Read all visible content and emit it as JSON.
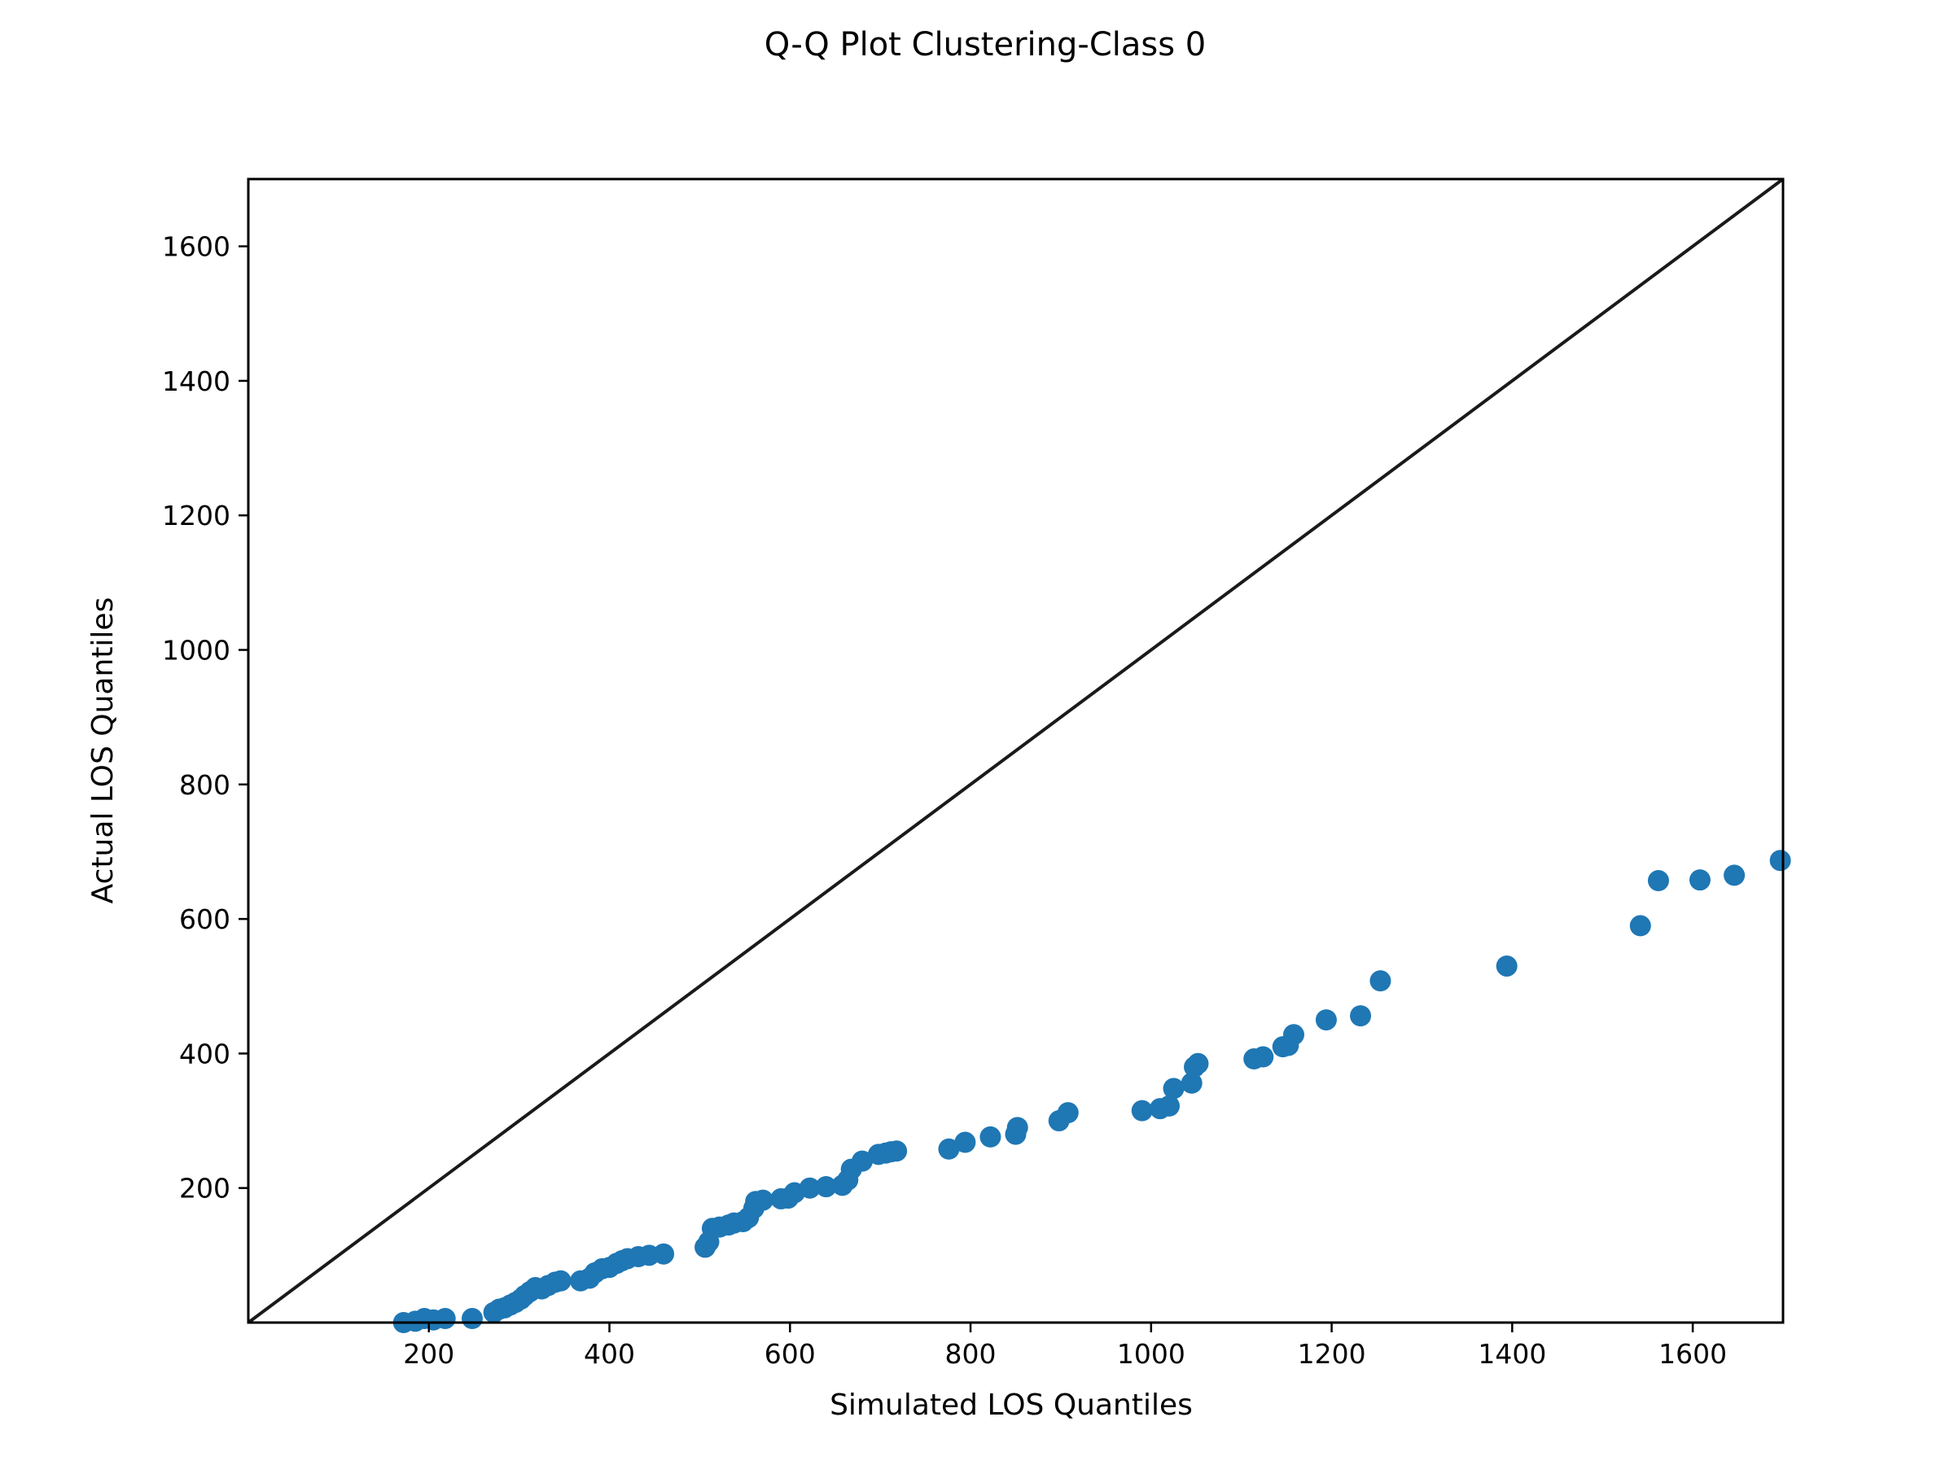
{
  "chart_data": {
    "type": "scatter",
    "title": "Q-Q Plot Clustering-Class 0",
    "xlabel": "Simulated LOS Quantiles",
    "ylabel": "Actual LOS Quantiles",
    "xlim": [
      0,
      1700
    ],
    "ylim": [
      0,
      1700
    ],
    "xticks": [
      200,
      400,
      600,
      800,
      1000,
      1200,
      1400,
      1600
    ],
    "yticks": [
      200,
      400,
      600,
      800,
      1000,
      1200,
      1400,
      1600
    ],
    "grid": false,
    "reference_line": {
      "from": [
        0,
        0
      ],
      "to": [
        1700,
        1700
      ],
      "color": "#1a1a1a"
    },
    "series": [
      {
        "marker_color": "#1f77b4",
        "points": [
          [
            172,
            0
          ],
          [
            185,
            2
          ],
          [
            195,
            6
          ],
          [
            205,
            4
          ],
          [
            218,
            6
          ],
          [
            248,
            6
          ],
          [
            272,
            15
          ],
          [
            278,
            20
          ],
          [
            284,
            22
          ],
          [
            290,
            26
          ],
          [
            296,
            30
          ],
          [
            302,
            35
          ],
          [
            306,
            40
          ],
          [
            312,
            46
          ],
          [
            318,
            52
          ],
          [
            325,
            50
          ],
          [
            332,
            55
          ],
          [
            340,
            60
          ],
          [
            346,
            62
          ],
          [
            368,
            62
          ],
          [
            378,
            66
          ],
          [
            384,
            74
          ],
          [
            392,
            80
          ],
          [
            400,
            82
          ],
          [
            408,
            88
          ],
          [
            414,
            92
          ],
          [
            420,
            95
          ],
          [
            432,
            98
          ],
          [
            444,
            100
          ],
          [
            460,
            102
          ],
          [
            506,
            112
          ],
          [
            510,
            120
          ],
          [
            514,
            140
          ],
          [
            522,
            142
          ],
          [
            532,
            145
          ],
          [
            538,
            148
          ],
          [
            548,
            150
          ],
          [
            554,
            156
          ],
          [
            560,
            170
          ],
          [
            562,
            180
          ],
          [
            570,
            182
          ],
          [
            590,
            184
          ],
          [
            598,
            185
          ],
          [
            605,
            193
          ],
          [
            622,
            200
          ],
          [
            640,
            202
          ],
          [
            658,
            204
          ],
          [
            664,
            212
          ],
          [
            668,
            228
          ],
          [
            680,
            240
          ],
          [
            698,
            250
          ],
          [
            706,
            252
          ],
          [
            712,
            254
          ],
          [
            718,
            255
          ],
          [
            776,
            258
          ],
          [
            794,
            268
          ],
          [
            822,
            276
          ],
          [
            850,
            280
          ],
          [
            852,
            290
          ],
          [
            898,
            300
          ],
          [
            908,
            312
          ],
          [
            990,
            315
          ],
          [
            1010,
            318
          ],
          [
            1020,
            322
          ],
          [
            1025,
            348
          ],
          [
            1045,
            356
          ],
          [
            1048,
            380
          ],
          [
            1052,
            385
          ],
          [
            1114,
            392
          ],
          [
            1124,
            395
          ],
          [
            1146,
            410
          ],
          [
            1152,
            412
          ],
          [
            1158,
            428
          ],
          [
            1194,
            450
          ],
          [
            1232,
            456
          ],
          [
            1254,
            508
          ],
          [
            1394,
            530
          ],
          [
            1542,
            590
          ],
          [
            1562,
            657
          ],
          [
            1608,
            658
          ],
          [
            1646,
            665
          ],
          [
            1697,
            687
          ]
        ]
      }
    ]
  }
}
